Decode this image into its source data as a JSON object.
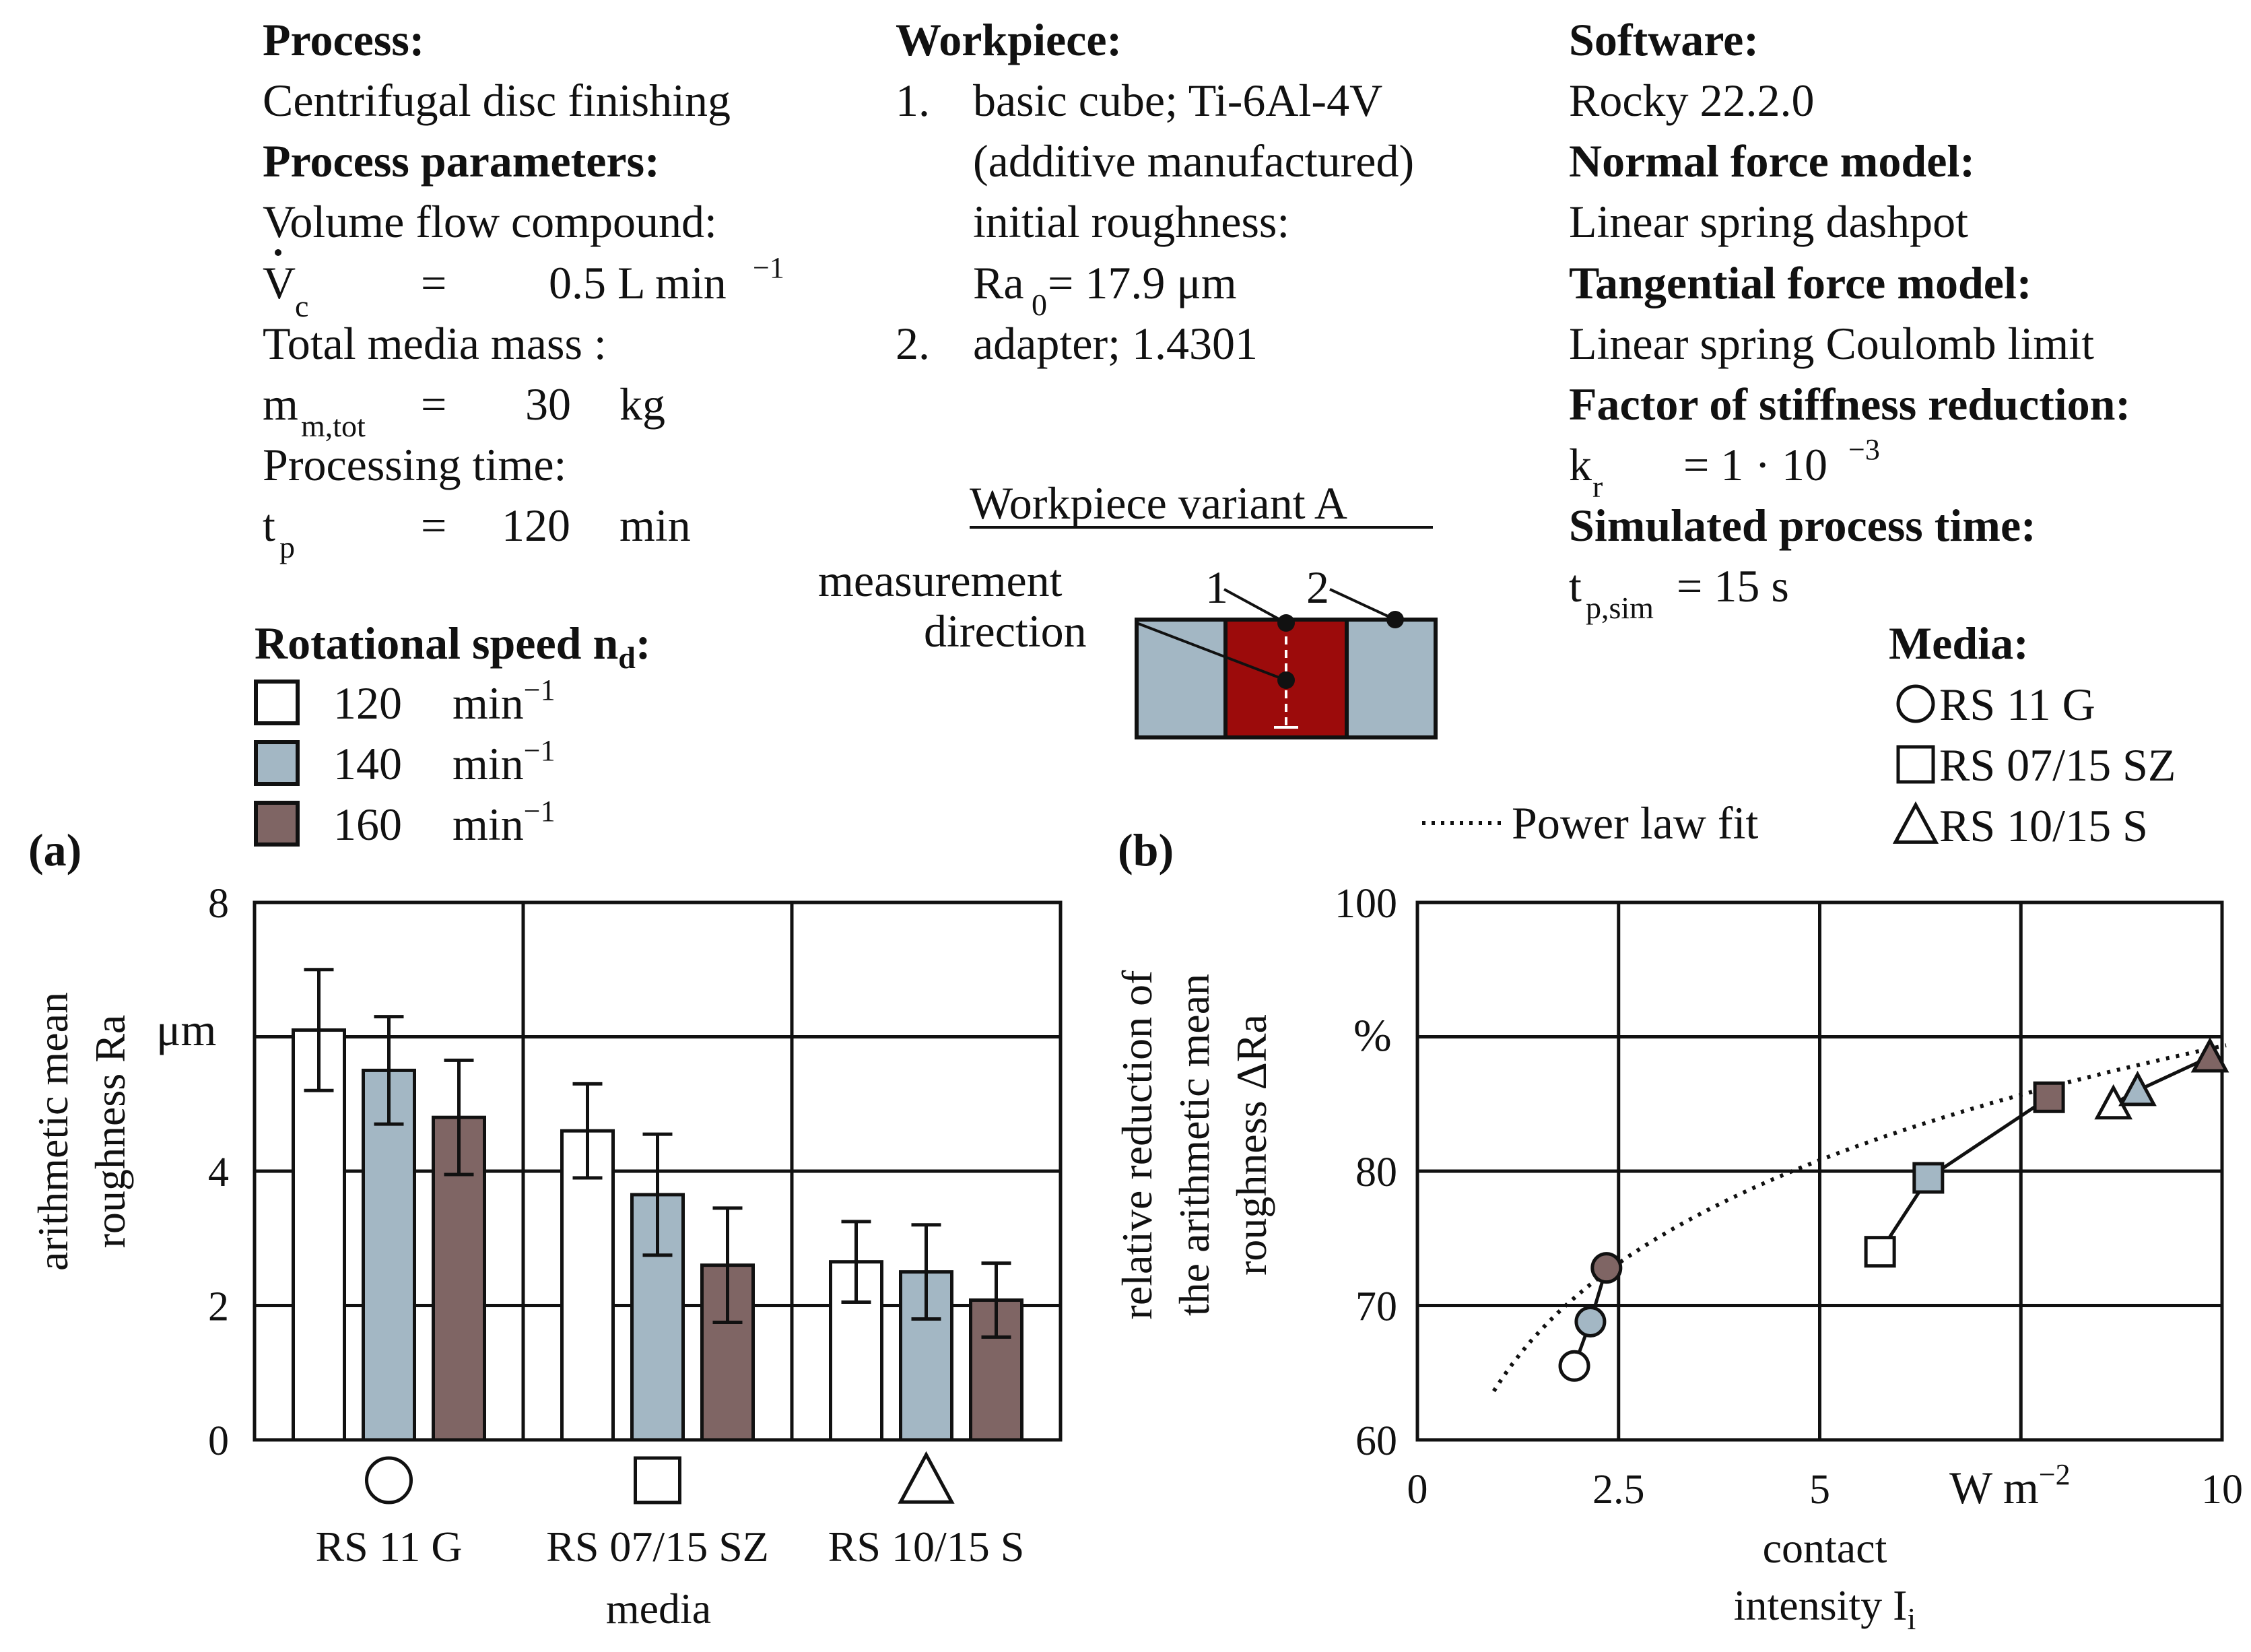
{
  "header": {
    "process_title": "Process:",
    "process_value": "Centrifugal disc finishing",
    "params_title": "Process parameters:",
    "volume_flow_label": "Volume flow compound:",
    "vc_symbol": "V",
    "vc_sub": "c",
    "vc_value": "0.5 L min",
    "vc_exp": "−1",
    "mass_label": "Total media mass :",
    "mass_symbol": "m",
    "mass_sub": "m,tot",
    "mass_value": "30",
    "mass_unit": "kg",
    "time_label": "Processing time:",
    "time_symbol": "t",
    "time_sub": "p",
    "time_value": "120",
    "time_unit": "min",
    "equals": "=",
    "workpiece_title": "Workpiece:",
    "wp1_num": "1.",
    "wp1_line1": "basic cube; Ti-6Al-4V",
    "wp1_line2": "(additive manufactured)",
    "wp1_line3": "initial roughness:",
    "ra0_symbol": "Ra",
    "ra0_sub": "0",
    "ra0_value": " = 17.9 μm",
    "wp2_num": "2.",
    "wp2_line": "adapter; 1.4301",
    "variant_title": "Workpiece variant A",
    "measurement_line1": "measurement",
    "measurement_line2": "direction",
    "marker1": "1",
    "marker2": "2",
    "software_title": "Software:",
    "software_value": "Rocky 22.2.0",
    "normal_title": "Normal force model:",
    "normal_value": "Linear spring dashpot",
    "tangential_title": "Tangential force model:",
    "tangential_value": "Linear spring Coulomb limit",
    "stiffness_title": "Factor of stiffness reduction:",
    "kr_symbol": "k",
    "kr_sub": "r",
    "kr_value": "=  1 · 10",
    "kr_exp": "−3",
    "simtime_title": "Simulated process time:",
    "tpsim_symbol": "t",
    "tpsim_sub": "p,sim",
    "tpsim_value": "=  15 s"
  },
  "legend_speed": {
    "title": "Rotational speed n",
    "title_sub": "d",
    "title_colon": ":",
    "unit": "min",
    "unit_exp": "−1",
    "items": [
      {
        "value": "120",
        "color": "#ffffff"
      },
      {
        "value": "140",
        "color": "#a3b7c4"
      },
      {
        "value": "160",
        "color": "#7f6564"
      }
    ]
  },
  "legend_media": {
    "title": "Media:",
    "items": [
      {
        "shape": "circle",
        "label": "RS 11 G"
      },
      {
        "shape": "square",
        "label": "RS 07/15 SZ"
      },
      {
        "shape": "triangle",
        "label": "RS 10/15 S"
      }
    ],
    "fit_label": "Power law fit"
  },
  "chart_data": [
    {
      "panel_label": "(a)",
      "type": "bar",
      "categories": [
        "RS 11 G",
        "RS 07/15 SZ",
        "RS 10/15 S"
      ],
      "category_symbols": [
        "circle",
        "square",
        "triangle"
      ],
      "series": [
        {
          "name": "120",
          "color": "#ffffff",
          "values": [
            6.1,
            4.6,
            2.65
          ],
          "errors": [
            0.9,
            0.7,
            0.6
          ]
        },
        {
          "name": "140",
          "color": "#a3b7c4",
          "values": [
            5.5,
            3.65,
            2.5
          ],
          "errors": [
            0.8,
            0.9,
            0.7
          ]
        },
        {
          "name": "160",
          "color": "#7f6564",
          "values": [
            4.8,
            2.6,
            2.08
          ],
          "errors": [
            0.85,
            0.85,
            0.55
          ]
        }
      ],
      "ylim": [
        0,
        8
      ],
      "yticks": [
        "0",
        "2",
        "4",
        "",
        "8"
      ],
      "y_unit": "μm",
      "ylabel_line1": "arithmetic mean",
      "ylabel_line2": "roughness Ra",
      "xlabel": "media",
      "grid": true
    },
    {
      "panel_label": "(b)",
      "type": "scatter",
      "xlim": [
        0,
        10
      ],
      "ylim": [
        60,
        100
      ],
      "xticks": [
        "0",
        "2.5",
        "5",
        "",
        "10"
      ],
      "x_unit": "W m",
      "x_unit_exp": "−2",
      "yticks": [
        "60",
        "70",
        "80",
        "",
        "100"
      ],
      "y_unit": "%",
      "xlabel_line1": "contact",
      "xlabel_line2": "intensity I",
      "xlabel_sub": "i",
      "ylabel_line1": "relative reduction of",
      "ylabel_line2": "the arithmetic mean",
      "ylabel_line3": "roughness ΔRa",
      "grid": true,
      "series": [
        {
          "name": "RS 11 G",
          "shape": "circle",
          "points": [
            {
              "x": 1.95,
              "y": 65.5,
              "color": "#ffffff"
            },
            {
              "x": 2.15,
              "y": 68.8,
              "color": "#a3b7c4"
            },
            {
              "x": 2.35,
              "y": 72.8,
              "color": "#7f6564"
            }
          ]
        },
        {
          "name": "RS 07/15 SZ",
          "shape": "square",
          "points": [
            {
              "x": 5.75,
              "y": 74.0,
              "color": "#ffffff"
            },
            {
              "x": 6.35,
              "y": 79.5,
              "color": "#a3b7c4"
            },
            {
              "x": 7.85,
              "y": 85.5,
              "color": "#7f6564"
            }
          ]
        },
        {
          "name": "RS 10/15 S",
          "shape": "triangle",
          "points": [
            {
              "x": 8.65,
              "y": 85.0,
              "color": "#ffffff"
            },
            {
              "x": 8.95,
              "y": 86.0,
              "color": "#a3b7c4"
            },
            {
              "x": 9.85,
              "y": 88.5,
              "color": "#7f6564"
            }
          ]
        }
      ],
      "fit": {
        "name": "Power law fit",
        "x_range": [
          0.95,
          10.05
        ],
        "a": 64.1,
        "b": 0.144
      }
    }
  ]
}
